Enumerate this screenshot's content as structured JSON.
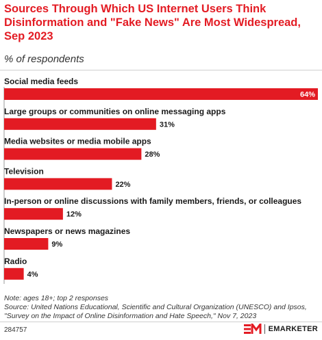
{
  "header": {
    "title": "Sources Through Which US Internet Users Think Disinformation and \"Fake News\" Are Most Widespread, Sep 2023",
    "subtitle": "% of respondents"
  },
  "chart_data": {
    "type": "bar",
    "orientation": "horizontal",
    "categories": [
      "Social media feeds",
      "Large groups or communities on online messaging apps",
      "Media websites or media mobile apps",
      "Television",
      "In-person or online discussions with family members, friends, or colleagues",
      "Newspapers or news magazines",
      "Radio"
    ],
    "values": [
      64,
      31,
      28,
      22,
      12,
      9,
      4
    ],
    "value_labels": [
      "64%",
      "31%",
      "28%",
      "22%",
      "12%",
      "9%",
      "4%"
    ],
    "unit": "%",
    "xlim": [
      0,
      64
    ],
    "bar_color": "#e31b23",
    "grid": false,
    "legend": "none"
  },
  "footer": {
    "note": "Note: ages 18+; top 2 responses",
    "source": "Source: United Nations Educational, Scientific and Cultural Organization (UNESCO) and Ipsos, \"Survey on the Impact of Online Disinformation and Hate Speech,\" Nov 7, 2023",
    "chart_id": "284757",
    "brand": "EMARKETER",
    "logo_icon": "em-logo-icon"
  }
}
